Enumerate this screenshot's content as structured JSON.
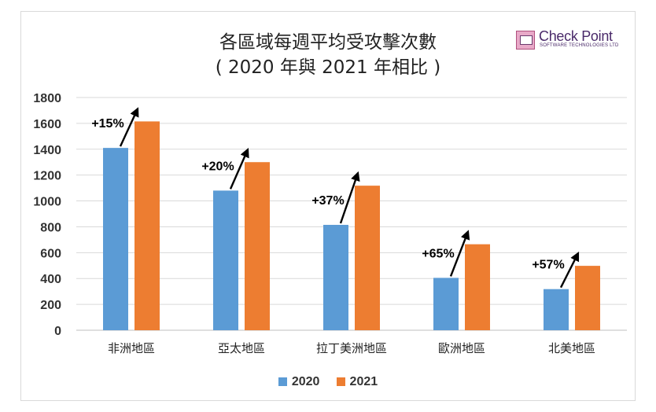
{
  "title_line1": "各區域每週平均受攻擊次數",
  "title_line2": "( 2020 年與 2021 年相比 )",
  "logo": {
    "name": "Check Point",
    "tagline": "SOFTWARE TECHNOLOGIES LTD"
  },
  "colors": {
    "series_2020": "#5b9bd5",
    "series_2021": "#ed7d31"
  },
  "chart_data": {
    "type": "bar",
    "categories": [
      "非洲地區",
      "亞太地區",
      "拉丁美洲地區",
      "歐洲地區",
      "北美地區"
    ],
    "series": [
      {
        "name": "2020",
        "values": [
          1410,
          1080,
          815,
          405,
          318
        ]
      },
      {
        "name": "2021",
        "values": [
          1615,
          1300,
          1118,
          665,
          498
        ]
      }
    ],
    "annotations": [
      "+15%",
      "+20%",
      "+37%",
      "+65%",
      "+57%"
    ],
    "yticks": [
      0,
      200,
      400,
      600,
      800,
      1000,
      1200,
      1400,
      1600,
      1800
    ],
    "ylim": [
      0,
      1800
    ],
    "xlabel": "",
    "ylabel": "",
    "grid": true,
    "legend_position": "bottom"
  }
}
